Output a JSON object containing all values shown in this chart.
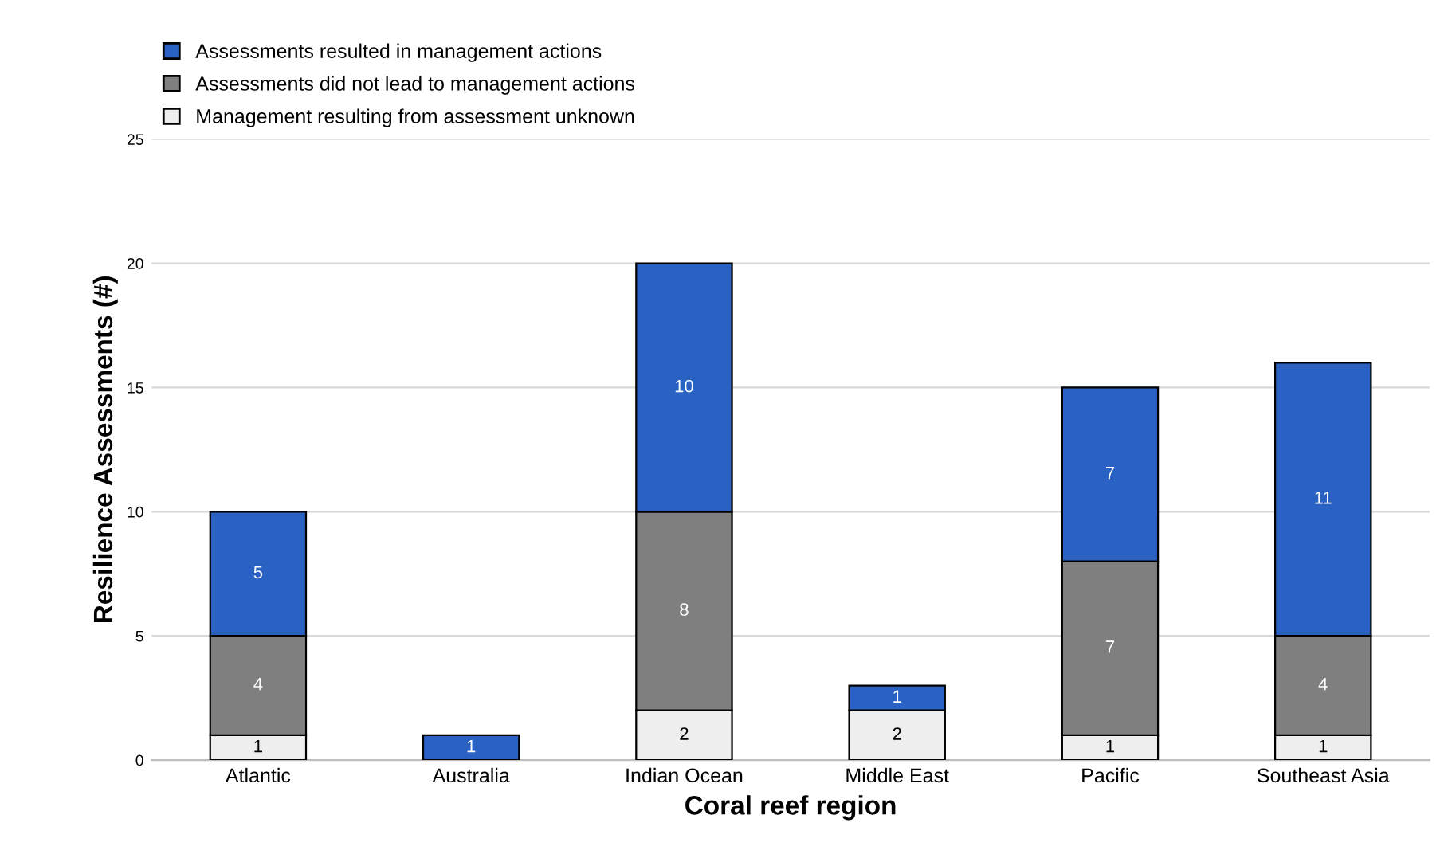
{
  "chart_data": {
    "type": "bar",
    "stacked": true,
    "xlabel": "Coral reef region",
    "ylabel": "Resilience Assessments (#)",
    "categories": [
      "Atlantic",
      "Australia",
      "Indian Ocean",
      "Middle East",
      "Pacific",
      "Southeast Asia"
    ],
    "series": [
      {
        "name": "Management resulting from assessment unknown",
        "color": "#eeeeee",
        "values": [
          1,
          null,
          2,
          2,
          1,
          1
        ]
      },
      {
        "name": "Assessments did not lead to management actions",
        "color": "#7f7f7f",
        "values": [
          4,
          null,
          8,
          null,
          7,
          4
        ]
      },
      {
        "name": "Assessments resulted in management actions",
        "color": "#2a62c4",
        "values": [
          5,
          1,
          10,
          1,
          7,
          11
        ]
      }
    ],
    "ylim": [
      0,
      25
    ],
    "yticks": [
      0,
      5,
      10,
      15,
      20,
      25
    ],
    "grid": "y",
    "legend": "top left",
    "data_labels": true
  }
}
